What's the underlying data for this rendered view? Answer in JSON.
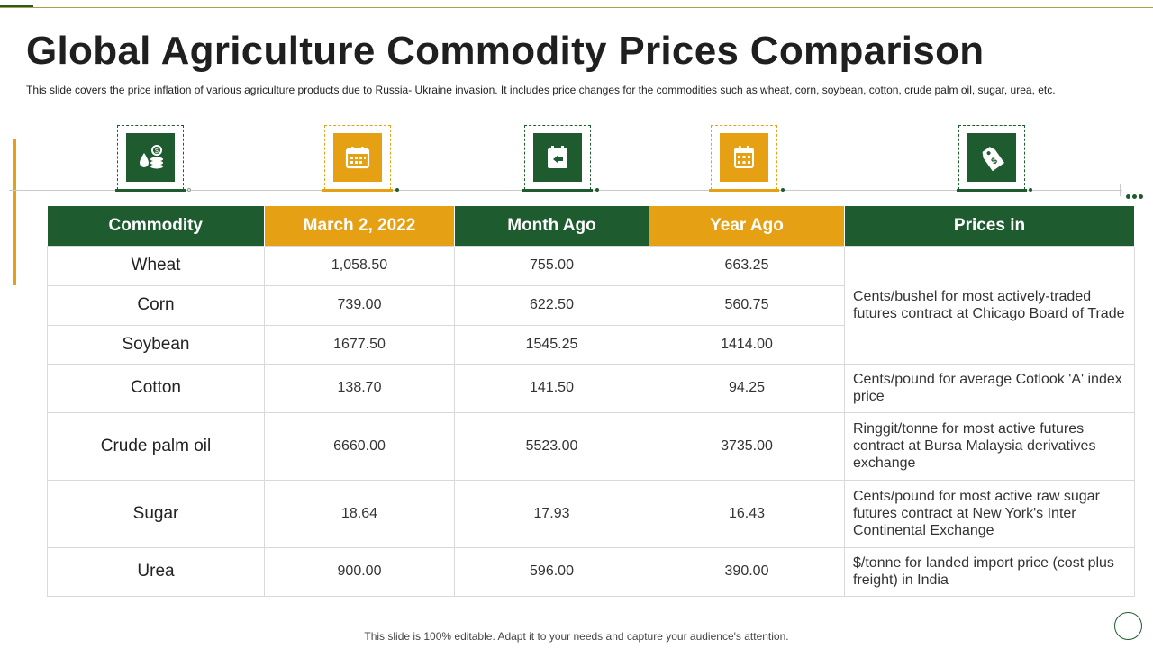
{
  "slide": {
    "title": "Global Agriculture Commodity Prices Comparison",
    "description": "This slide covers the price inflation of various  agriculture products due to Russia- Ukraine invasion. It includes price changes for the commodities such as wheat, corn, soybean, cotton, crude palm oil, sugar, urea, etc.",
    "footer": "This slide is 100% editable. Adapt it to your needs and capture your audience's attention."
  },
  "icons": [
    "money-drop-icon",
    "calendar-icon",
    "calendar-back-icon",
    "calendar-grid-icon",
    "price-tag-icon"
  ],
  "colors": {
    "green": "#1e5b2e",
    "orange": "#e6a013"
  },
  "table": {
    "headers": [
      "Commodity",
      "March 2, 2022",
      "Month Ago",
      "Year Ago",
      "Prices in"
    ],
    "rows": [
      {
        "commodity": "Wheat",
        "march": "1,058.50",
        "month_ago": "755.00",
        "year_ago": "663.25"
      },
      {
        "commodity": "Corn",
        "march": "739.00",
        "month_ago": "622.50",
        "year_ago": "560.75"
      },
      {
        "commodity": "Soybean",
        "march": "1677.50",
        "month_ago": "1545.25",
        "year_ago": "1414.00"
      },
      {
        "commodity": "Cotton",
        "march": "138.70",
        "month_ago": "141.50",
        "year_ago": "94.25"
      },
      {
        "commodity": "Crude palm oil",
        "march": "6660.00",
        "month_ago": "5523.00",
        "year_ago": "3735.00"
      },
      {
        "commodity": "Sugar",
        "march": "18.64",
        "month_ago": "17.93",
        "year_ago": "16.43"
      },
      {
        "commodity": "Urea",
        "march": "900.00",
        "month_ago": "596.00",
        "year_ago": "390.00"
      }
    ],
    "units": [
      "Cents/bushel for most actively-traded futures contract at Chicago Board of Trade",
      "Cents/pound for average Cotlook 'A' index price",
      "Ringgit/tonne for most active futures contract at Bursa Malaysia derivatives exchange",
      "Cents/pound for most active raw sugar futures contract at New York's Inter Continental Exchange",
      "$/tonne for landed import price (cost plus freight) in India"
    ]
  }
}
